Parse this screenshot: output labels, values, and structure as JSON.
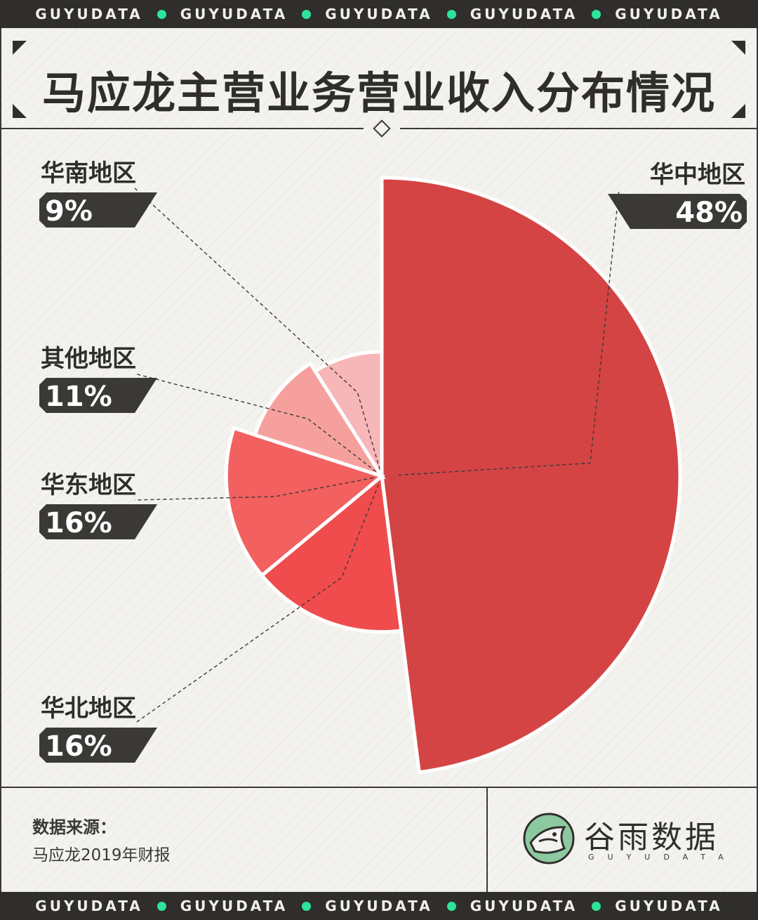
{
  "ticker": {
    "words": [
      "GUYUDATA",
      "GUYUDATA",
      "GUYUDATA",
      "GUYUDATA",
      "GUYUDATA"
    ]
  },
  "header": {
    "title": "马应龙主营业务营业收入分布情况"
  },
  "chart_data": {
    "type": "pie",
    "variant": "rose",
    "title": "马应龙主营业务营业收入分布情况",
    "slices": [
      {
        "label": "华中地区",
        "value": 48,
        "value_label": "48%",
        "color": "#d44444"
      },
      {
        "label": "华北地区",
        "value": 16,
        "value_label": "16%",
        "color": "#f04c4e"
      },
      {
        "label": "华东地区",
        "value": 16,
        "value_label": "16%",
        "color": "#f26060"
      },
      {
        "label": "其他地区",
        "value": 11,
        "value_label": "11%",
        "color": "#f6a09d"
      },
      {
        "label": "华南地区",
        "value": 9,
        "value_label": "9%",
        "color": "#f7b6b7"
      }
    ]
  },
  "footer": {
    "source_label": "数据来源：",
    "source_text": "马应龙2019年财报",
    "brand_name": "谷雨数据",
    "brand_sub": "GUYUDATA"
  },
  "colors": {
    "dark": "#2f2e2c",
    "accent_dot": "#2ee39a",
    "background": "#f3f2ee"
  }
}
